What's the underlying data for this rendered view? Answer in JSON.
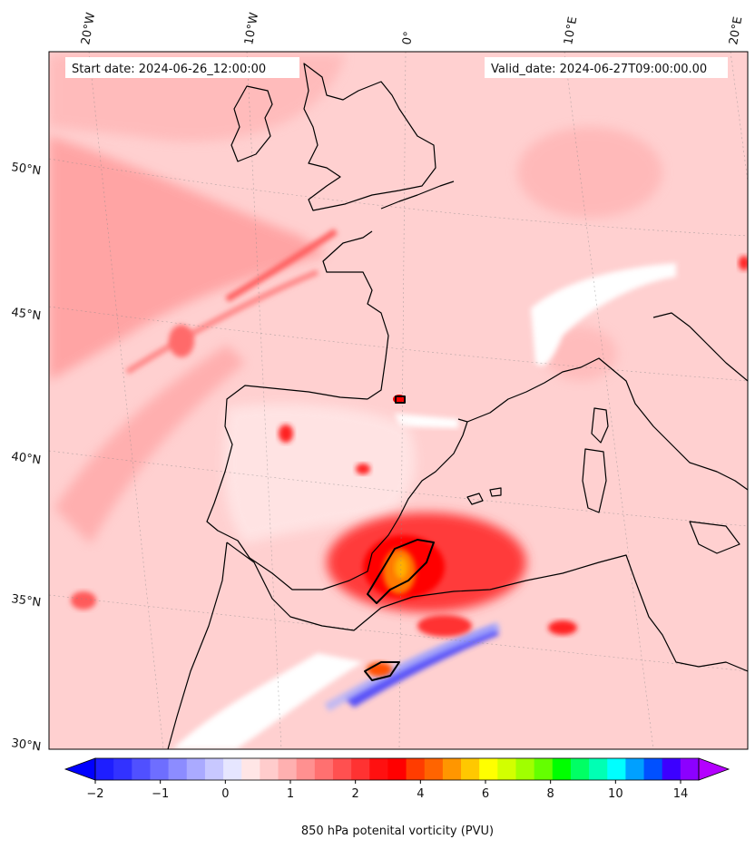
{
  "map": {
    "start_label": "Start date: 2024-06-26_12:00:00",
    "valid_label": "Valid_date: 2024-06-27T09:00:00.00",
    "lon_labels": [
      "20°W",
      "10°W",
      "0°",
      "10°E",
      "20°E"
    ],
    "lat_labels": [
      "50°N",
      "45°N",
      "40°N",
      "35°N",
      "30°N"
    ],
    "colors": {
      "land_outline": "#000000",
      "background_pv": "#ffcccc"
    }
  },
  "colorbar": {
    "title": "850 hPa potenital vorticity (PVU)",
    "tick_labels": [
      "−2",
      "−1",
      "0",
      "1",
      "2",
      "4",
      "6",
      "8",
      "10",
      "14"
    ],
    "colors": [
      "#1e1eff",
      "#3232ff",
      "#5050ff",
      "#6e6eff",
      "#8c8cff",
      "#aaaaff",
      "#c8c8ff",
      "#e6e6ff",
      "#ffe6e6",
      "#ffcccc",
      "#ffb0b0",
      "#ff9090",
      "#ff7070",
      "#ff5050",
      "#ff3232",
      "#ff1010",
      "#ff0000",
      "#ff3c00",
      "#ff6400",
      "#ff9600",
      "#ffc800",
      "#ffff00",
      "#d2ff00",
      "#a0ff00",
      "#64ff00",
      "#00ff00",
      "#00ff64",
      "#00ffb4",
      "#00ffff",
      "#00a0ff",
      "#0050ff",
      "#3c00ff",
      "#8c00ff"
    ],
    "under_color": "#0000ff",
    "over_color": "#b400ff"
  }
}
